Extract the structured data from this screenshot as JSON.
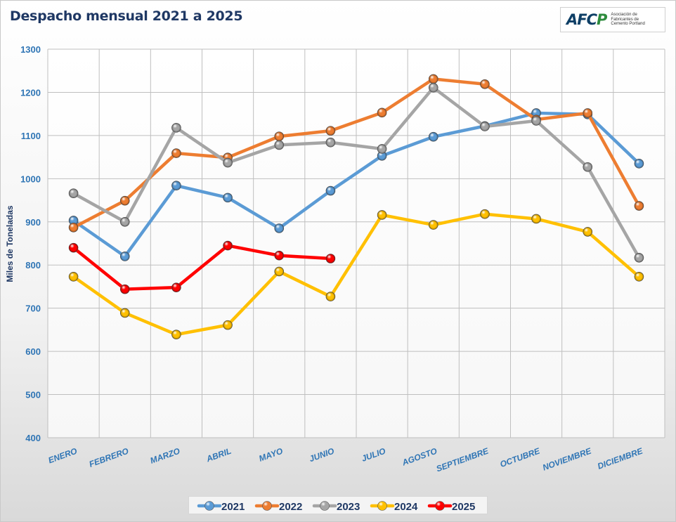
{
  "header": {
    "title": "Despacho mensual 2021 a 2025",
    "logo": {
      "mark": "AFCP",
      "subtitle": "Asociación de Fabricantes de Cemento Portland"
    }
  },
  "chart_data": {
    "type": "line",
    "title": "Despacho mensual 2021 a 2025",
    "ylabel": "Miles de Toneladas",
    "xlabel": "",
    "ylim": [
      400,
      1300
    ],
    "yticks": [
      400,
      500,
      600,
      700,
      800,
      900,
      1000,
      1100,
      1200,
      1300
    ],
    "grid": true,
    "legend_position": "bottom",
    "categories": [
      "ENERO",
      "FEBRERO",
      "MARZO",
      "ABRIL",
      "MAYO",
      "JUNIO",
      "JULIO",
      "AGOSTO",
      "SEPTIEMBRE",
      "OCTUBRE",
      "NOVIEMBRE",
      "DICIEMBRE"
    ],
    "series": [
      {
        "name": "2021",
        "color": "#5b9bd5",
        "values": [
          903,
          820,
          984,
          956,
          885,
          972,
          1053,
          1097,
          1122,
          1152,
          1149,
          1035
        ]
      },
      {
        "name": "2022",
        "color": "#ed7d31",
        "values": [
          887,
          949,
          1059,
          1049,
          1098,
          1111,
          1153,
          1231,
          1219,
          1137,
          1152,
          937
        ]
      },
      {
        "name": "2023",
        "color": "#a5a5a5",
        "values": [
          966,
          900,
          1118,
          1037,
          1078,
          1084,
          1069,
          1211,
          1121,
          1134,
          1027,
          817
        ]
      },
      {
        "name": "2024",
        "color": "#ffc000",
        "values": [
          773,
          689,
          639,
          661,
          785,
          727,
          916,
          893,
          918,
          907,
          877,
          773
        ]
      },
      {
        "name": "2025",
        "color": "#ff0000",
        "values": [
          840,
          744,
          748,
          845,
          822,
          815,
          null,
          null,
          null,
          null,
          null,
          null
        ]
      }
    ]
  }
}
